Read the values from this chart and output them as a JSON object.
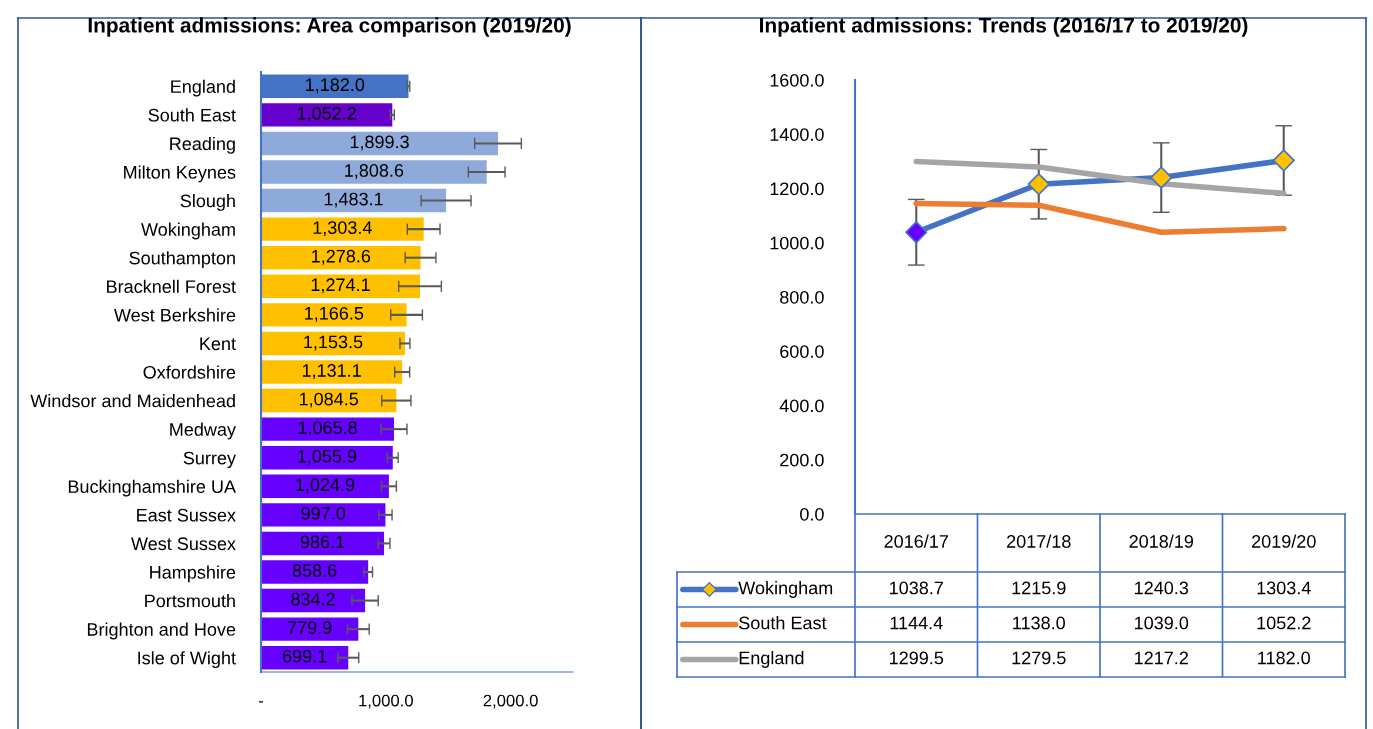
{
  "chart_data": [
    {
      "type": "bar",
      "orientation": "horizontal",
      "title": "Inpatient admissions: Area comparison (2019/20)",
      "categories": [
        "England",
        "South East",
        "Reading",
        "Milton Keynes",
        "Slough",
        "Wokingham",
        "Southampton",
        "Bracknell Forest",
        "West Berkshire",
        "Kent",
        "Oxfordshire",
        "Windsor and Maidenhead",
        "Medway",
        "Surrey",
        "Buckinghamshire UA",
        "East Sussex",
        "West Sussex",
        "Hampshire",
        "Portsmouth",
        "Brighton and Hove",
        "Isle of Wight"
      ],
      "values": [
        1182.0,
        1052.2,
        1899.3,
        1808.6,
        1483.1,
        1303.4,
        1278.6,
        1274.1,
        1166.5,
        1153.5,
        1131.1,
        1084.5,
        1065.8,
        1055.9,
        1024.9,
        997.0,
        986.1,
        858.6,
        834.2,
        779.9,
        699.1
      ],
      "value_labels": [
        "1,182.0",
        "1,052.2",
        "1,899.3",
        "1,808.6",
        "1,483.1",
        "1,303.4",
        "1,278.6",
        "1,274.1",
        "1,166.5",
        "1,153.5",
        "1,131.1",
        "1,084.5",
        "1,065.8",
        "1,055.9",
        "1,024.9",
        "997.0",
        "986.1",
        "858.6",
        "834.2",
        "779.9",
        "699.1"
      ],
      "errors": [
        10,
        16,
        187,
        147,
        200,
        131,
        123,
        171,
        127,
        40,
        60,
        117,
        104,
        43,
        60,
        53,
        47,
        35,
        105,
        87,
        84
      ],
      "colors": [
        "#4472c4",
        "#6600cc",
        "#8eaadb",
        "#8eaadb",
        "#8eaadb",
        "#ffc000",
        "#ffc000",
        "#ffc000",
        "#ffc000",
        "#ffc000",
        "#ffc000",
        "#ffc000",
        "#6600ff",
        "#6600ff",
        "#6600ff",
        "#6600ff",
        "#6600ff",
        "#6600ff",
        "#6600ff",
        "#6600ff",
        "#6600ff"
      ],
      "xlim": [
        0,
        2500
      ],
      "xticks": [
        {
          "value": 0,
          "label": "-"
        },
        {
          "value": 1000,
          "label": "1,000.0"
        },
        {
          "value": 2000,
          "label": "2,000.0"
        }
      ],
      "grid": false
    },
    {
      "type": "line",
      "title": "Inpatient admissions: Trends (2016/17 to 2019/20)",
      "categories": [
        "2016/17",
        "2017/18",
        "2018/19",
        "2019/20"
      ],
      "series": [
        {
          "name": "Wokingham",
          "color": "#4472c4",
          "values": [
            1038.7,
            1215.9,
            1240.3,
            1303.4
          ],
          "errors": [
            121,
            128,
            128,
            128
          ],
          "marker": "diamond",
          "colors": [
            "#6600ff",
            "#ffc000",
            "#ffc000",
            "#ffc000"
          ],
          "value_labels": [
            "1038.7",
            "1215.9",
            "1240.3",
            "1303.4"
          ]
        },
        {
          "name": "South East",
          "color": "#ed7d31",
          "values": [
            1144.4,
            1138.0,
            1039.0,
            1052.2
          ],
          "value_labels": [
            "1144.4",
            "1138.0",
            "1039.0",
            "1052.2"
          ]
        },
        {
          "name": "England",
          "color": "#a5a5a5",
          "values": [
            1299.5,
            1279.5,
            1217.2,
            1182.0
          ],
          "value_labels": [
            "1299.5",
            "1279.5",
            "1217.2",
            "1182.0"
          ]
        }
      ],
      "legend": "bottom left",
      "ylim": [
        0,
        1600
      ],
      "yticks": [
        {
          "value": 0,
          "label": "0.0"
        },
        {
          "value": 200,
          "label": "200.0"
        },
        {
          "value": 400,
          "label": "400.0"
        },
        {
          "value": 600,
          "label": "600.0"
        },
        {
          "value": 800,
          "label": "800.0"
        },
        {
          "value": 1000,
          "label": "1000.0"
        },
        {
          "value": 1200,
          "label": "1200.0"
        },
        {
          "value": 1400,
          "label": "1400.0"
        },
        {
          "value": 1600,
          "label": "1600.0"
        }
      ],
      "grid": false
    }
  ]
}
